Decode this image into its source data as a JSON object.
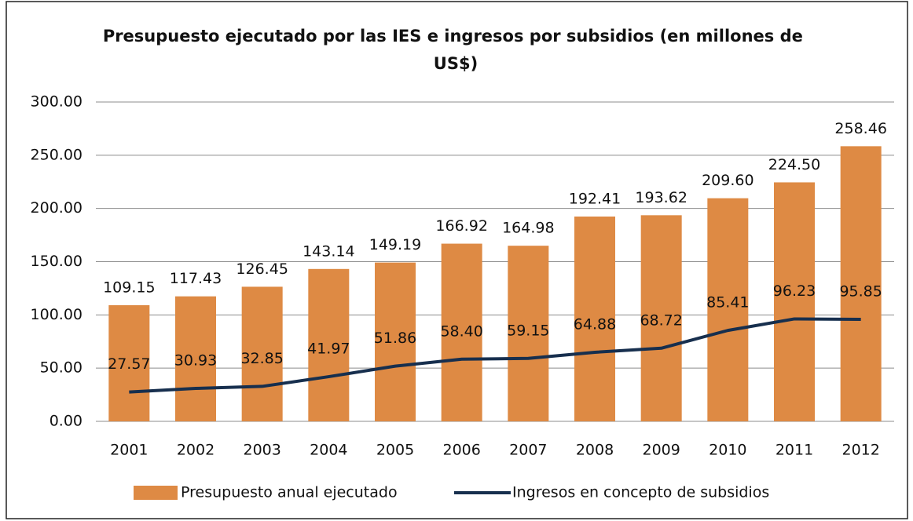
{
  "chart_data": {
    "type": "bar",
    "title": "Presupuesto ejecutado por las IES e ingresos por subsidios (en millones de US$)",
    "categories": [
      "2001",
      "2002",
      "2003",
      "2004",
      "2005",
      "2006",
      "2007",
      "2008",
      "2009",
      "2010",
      "2011",
      "2012"
    ],
    "series": [
      {
        "name": "Presupuesto anual ejecutado",
        "type": "bar",
        "color": "#de8a44",
        "values": [
          109.15,
          117.43,
          126.45,
          143.14,
          149.19,
          166.92,
          164.98,
          192.41,
          193.62,
          209.6,
          224.5,
          258.46
        ],
        "value_labels": [
          "109.15",
          "117.43",
          "126.45",
          "143.14",
          "149.19",
          "166.92",
          "164.98",
          "192.41",
          "193.62",
          "209.60",
          "224.50",
          "258.46"
        ]
      },
      {
        "name": "Ingresos en concepto de subsidios",
        "type": "line",
        "color": "#172f4e",
        "values": [
          27.57,
          30.93,
          32.85,
          41.97,
          51.86,
          58.4,
          59.15,
          64.88,
          68.72,
          85.41,
          96.23,
          95.85
        ],
        "value_labels": [
          "27.57",
          "30.93",
          "32.85",
          "41.97",
          "51.86",
          "58.40",
          "59.15",
          "64.88",
          "68.72",
          "85.41",
          "96.23",
          "95.85"
        ]
      }
    ],
    "ylim": [
      0,
      300
    ],
    "yticks": [
      {
        "value": 0,
        "label": "0.00"
      },
      {
        "value": 50,
        "label": "50.00"
      },
      {
        "value": 100,
        "label": "100.00"
      },
      {
        "value": 150,
        "label": "150.00"
      },
      {
        "value": 200,
        "label": "200.00"
      },
      {
        "value": 250,
        "label": "250.00"
      },
      {
        "value": 300,
        "label": "300.00"
      }
    ],
    "grid": true,
    "legend": "bottom"
  }
}
